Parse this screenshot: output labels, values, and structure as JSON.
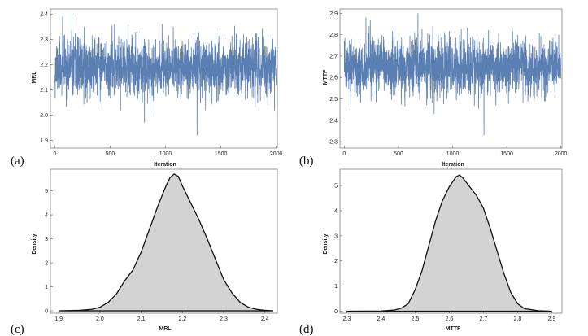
{
  "chart_data": [
    {
      "id": "a",
      "panel_label": "(a)",
      "type": "line",
      "title": "",
      "xlabel": "Iteration",
      "ylabel": "MRL",
      "xlim": [
        -40,
        2010
      ],
      "ylim": [
        1.87,
        2.42
      ],
      "x_ticks": [
        0,
        500,
        1000,
        1500,
        2000
      ],
      "y_ticks": [
        1.9,
        2.0,
        2.1,
        2.2,
        2.3,
        2.4
      ],
      "y_tick_decimals": 1,
      "series": [
        {
          "name": "MRL trace",
          "color": "#5b7fb3",
          "n_points": 2001,
          "mean": 2.19,
          "sd": 0.055,
          "seed": 11,
          "extremes": [
            [
              70,
              2.39
            ],
            [
              155,
              2.4
            ],
            [
              1070,
              2.35
            ],
            [
              1285,
              1.92
            ],
            [
              810,
              1.97
            ],
            [
              860,
              2.0
            ],
            [
              390,
              2.02
            ],
            [
              1810,
              2.03
            ],
            [
              1985,
              2.02
            ]
          ]
        }
      ]
    },
    {
      "id": "b",
      "panel_label": "(b)",
      "type": "line",
      "title": "",
      "xlabel": "Iteration",
      "ylabel": "MTTF",
      "xlim": [
        -40,
        2010
      ],
      "ylim": [
        2.27,
        2.92
      ],
      "x_ticks": [
        0,
        500,
        1000,
        1500,
        2000
      ],
      "y_ticks": [
        2.3,
        2.4,
        2.5,
        2.6,
        2.7,
        2.8,
        2.9
      ],
      "y_tick_decimals": 1,
      "series": [
        {
          "name": "MTTF trace",
          "color": "#5b7fb3",
          "n_points": 2001,
          "mean": 2.645,
          "sd": 0.063,
          "seed": 23,
          "extremes": [
            [
              680,
              2.9
            ],
            [
              200,
              2.88
            ],
            [
              240,
              2.87
            ],
            [
              1290,
              2.33
            ],
            [
              830,
              2.43
            ],
            [
              60,
              2.46
            ],
            [
              1400,
              2.47
            ],
            [
              1980,
              2.8
            ]
          ]
        }
      ]
    },
    {
      "id": "c",
      "panel_label": "(c)",
      "type": "area",
      "title": "",
      "xlabel": "MRL",
      "ylabel": "Density",
      "xlim": [
        1.88,
        2.43
      ],
      "ylim": [
        -0.1,
        5.9
      ],
      "x_ticks": [
        1.9,
        2.0,
        2.1,
        2.2,
        2.3,
        2.4
      ],
      "y_ticks": [
        0,
        1,
        2,
        3,
        4,
        5
      ],
      "x_tick_decimals": 1,
      "series": [
        {
          "name": "MRL density",
          "fill": "#d3d3d3",
          "x": [
            1.9,
            1.95,
            1.98,
            2.0,
            2.02,
            2.04,
            2.06,
            2.08,
            2.1,
            2.12,
            2.14,
            2.16,
            2.17,
            2.18,
            2.19,
            2.2,
            2.22,
            2.24,
            2.26,
            2.28,
            2.3,
            2.32,
            2.34,
            2.36,
            2.38,
            2.4,
            2.42
          ],
          "values": [
            0.0,
            0.02,
            0.06,
            0.15,
            0.35,
            0.7,
            1.25,
            1.7,
            2.45,
            3.4,
            4.35,
            5.2,
            5.55,
            5.7,
            5.6,
            5.2,
            4.5,
            3.8,
            3.0,
            2.15,
            1.3,
            0.75,
            0.35,
            0.15,
            0.06,
            0.02,
            0.0
          ]
        }
      ]
    },
    {
      "id": "d",
      "panel_label": "(d)",
      "type": "area",
      "title": "",
      "xlabel": "MTTF",
      "ylabel": "Density",
      "xlim": [
        2.28,
        2.93
      ],
      "ylim": [
        -0.08,
        5.65
      ],
      "x_ticks": [
        2.3,
        2.4,
        2.5,
        2.6,
        2.7,
        2.8,
        2.9
      ],
      "y_ticks": [
        0,
        1,
        2,
        3,
        4,
        5
      ],
      "x_tick_decimals": 1,
      "series": [
        {
          "name": "MTTF density",
          "fill": "#d3d3d3",
          "x": [
            2.3,
            2.4,
            2.44,
            2.46,
            2.48,
            2.5,
            2.52,
            2.54,
            2.56,
            2.58,
            2.6,
            2.62,
            2.63,
            2.64,
            2.66,
            2.68,
            2.7,
            2.72,
            2.74,
            2.76,
            2.78,
            2.8,
            2.82,
            2.86,
            2.9
          ],
          "values": [
            0.0,
            0.01,
            0.05,
            0.12,
            0.3,
            0.85,
            1.6,
            2.6,
            3.6,
            4.4,
            4.95,
            5.35,
            5.42,
            5.3,
            4.95,
            4.6,
            4.1,
            3.3,
            2.4,
            1.5,
            0.75,
            0.3,
            0.1,
            0.02,
            0.0
          ]
        }
      ]
    }
  ]
}
